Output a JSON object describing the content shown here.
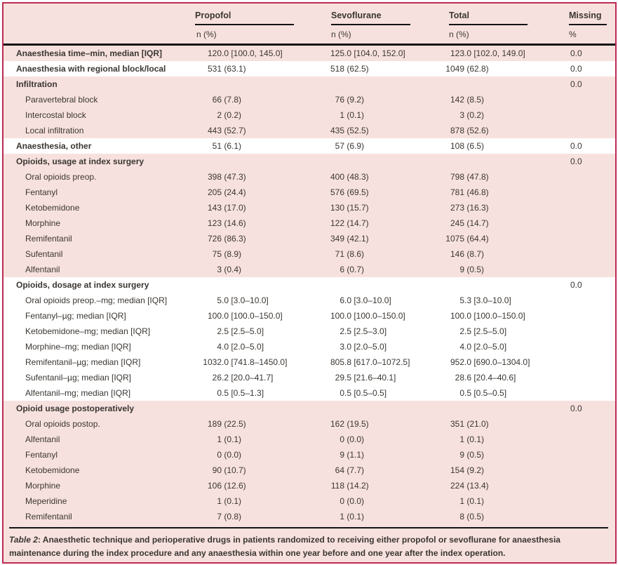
{
  "table": {
    "columns": [
      {
        "label": "Propofol",
        "subheader": "n (%)"
      },
      {
        "label": "Sevoflurane",
        "subheader": "n (%)"
      },
      {
        "label": "Total",
        "subheader": "n (%)"
      },
      {
        "label": "Missing",
        "subheader": "%"
      }
    ],
    "rows": [
      {
        "label": "Anaesthesia time–min, median [IQR]",
        "bold": true,
        "indent": false,
        "bg": "pink",
        "propofol": "120.0 [100.0, 145.0]",
        "sevoflurane": "125.0 [104.0, 152.0]",
        "total": "123.0 [102.0, 149.0]",
        "missing": "0.0"
      },
      {
        "label": "Anaesthesia with regional block/local",
        "bold": true,
        "indent": false,
        "bg": "white",
        "propofol": "531 (63.1)",
        "sevoflurane": "518 (62.5)",
        "total": "1049 (62.8)",
        "missing": "0.0"
      },
      {
        "label": "Infiltration",
        "bold": true,
        "indent": false,
        "bg": "pink",
        "propofol": "",
        "sevoflurane": "",
        "total": "",
        "missing": "0.0"
      },
      {
        "label": "Paravertebral block",
        "bold": false,
        "indent": true,
        "bg": "pink",
        "propofol": "66 (7.8)",
        "sevoflurane": "76 (9.2)",
        "total": "142 (8.5)",
        "missing": ""
      },
      {
        "label": "Intercostal block",
        "bold": false,
        "indent": true,
        "bg": "pink",
        "propofol": "2 (0.2)",
        "sevoflurane": "1 (0.1)",
        "total": "3 (0.2)",
        "missing": ""
      },
      {
        "label": "Local infiltration",
        "bold": false,
        "indent": true,
        "bg": "pink",
        "propofol": "443 (52.7)",
        "sevoflurane": "435 (52.5)",
        "total": "878 (52.6)",
        "missing": ""
      },
      {
        "label": "Anaesthesia, other",
        "bold": true,
        "indent": false,
        "bg": "white",
        "propofol": "51 (6.1)",
        "sevoflurane": "57 (6.9)",
        "total": "108 (6.5)",
        "missing": "0.0"
      },
      {
        "label": "Opioids, usage at index surgery",
        "bold": true,
        "indent": false,
        "bg": "pink",
        "propofol": "",
        "sevoflurane": "",
        "total": "",
        "missing": "0.0"
      },
      {
        "label": "Oral opioids preop.",
        "bold": false,
        "indent": true,
        "bg": "pink",
        "propofol": "398 (47.3)",
        "sevoflurane": "400 (48.3)",
        "total": "798 (47.8)",
        "missing": ""
      },
      {
        "label": "Fentanyl",
        "bold": false,
        "indent": true,
        "bg": "pink",
        "propofol": "205 (24.4)",
        "sevoflurane": "576 (69.5)",
        "total": "781 (46.8)",
        "missing": ""
      },
      {
        "label": "Ketobemidone",
        "bold": false,
        "indent": true,
        "bg": "pink",
        "propofol": "143 (17.0)",
        "sevoflurane": "130 (15.7)",
        "total": "273 (16.3)",
        "missing": ""
      },
      {
        "label": "Morphine",
        "bold": false,
        "indent": true,
        "bg": "pink",
        "propofol": "123 (14.6)",
        "sevoflurane": "122 (14.7)",
        "total": "245 (14.7)",
        "missing": ""
      },
      {
        "label": "Remifentanil",
        "bold": false,
        "indent": true,
        "bg": "pink",
        "propofol": "726 (86.3)",
        "sevoflurane": "349 (42.1)",
        "total": "1075 (64.4)",
        "missing": ""
      },
      {
        "label": "Sufentanil",
        "bold": false,
        "indent": true,
        "bg": "pink",
        "propofol": "75 (8.9)",
        "sevoflurane": "71 (8.6)",
        "total": "146 (8.7)",
        "missing": ""
      },
      {
        "label": "Alfentanil",
        "bold": false,
        "indent": true,
        "bg": "pink",
        "propofol": "3 (0.4)",
        "sevoflurane": "6 (0.7)",
        "total": "9 (0.5)",
        "missing": ""
      },
      {
        "label": "Opioids, dosage at index surgery",
        "bold": true,
        "indent": false,
        "bg": "white",
        "propofol": "",
        "sevoflurane": "",
        "total": "",
        "missing": "0.0"
      },
      {
        "label": "Oral opioids preop.–mg; median [IQR]",
        "bold": false,
        "indent": true,
        "bg": "white",
        "propofol": "5.0 [3.0–10.0]",
        "sevoflurane": "6.0 [3.0–10.0]",
        "total": "5.3 [3.0–10.0]",
        "missing": ""
      },
      {
        "label": "Fentanyl–µg; median [IQR]",
        "bold": false,
        "indent": true,
        "bg": "white",
        "propofol": "100.0 [100.0–150.0]",
        "sevoflurane": "100.0 [100.0–150.0]",
        "total": "100.0 [100.0–150.0]",
        "missing": ""
      },
      {
        "label": "Ketobemidone–mg; median [IQR]",
        "bold": false,
        "indent": true,
        "bg": "white",
        "propofol": "2.5 [2.5–5.0]",
        "sevoflurane": "2.5 [2.5–3.0]",
        "total": "2.5 [2.5–5.0]",
        "missing": ""
      },
      {
        "label": "Morphine–mg; median [IQR]",
        "bold": false,
        "indent": true,
        "bg": "white",
        "propofol": "4.0 [2.0–5.0]",
        "sevoflurane": "3.0 [2.0–5.0]",
        "total": "4.0 [2.0–5.0]",
        "missing": ""
      },
      {
        "label": "Remifentanil–µg; median [IQR]",
        "bold": false,
        "indent": true,
        "bg": "white",
        "propofol": "1032.0 [741.8–1450.0]",
        "sevoflurane": "805.8 [617.0–1072.5]",
        "total": "952.0 [690.0–1304.0]",
        "missing": ""
      },
      {
        "label": "Sufentanil–µg; median [IQR]",
        "bold": false,
        "indent": true,
        "bg": "white",
        "propofol": "26.2 [20.0–41.7]",
        "sevoflurane": "29.5 [21.6–40.1]",
        "total": "28.6 [20.4–40.6]",
        "missing": ""
      },
      {
        "label": "Alfentanil–mg; median [IQR]",
        "bold": false,
        "indent": true,
        "bg": "white",
        "propofol": "0.5 [0.5–1.3]",
        "sevoflurane": "0.5 [0.5–0.5]",
        "total": "0.5 [0.5–0.5]",
        "missing": ""
      },
      {
        "label": "Opioid usage postoperatively",
        "bold": true,
        "indent": false,
        "bg": "pink",
        "propofol": "",
        "sevoflurane": "",
        "total": "",
        "missing": "0.0"
      },
      {
        "label": "Oral opioids postop.",
        "bold": false,
        "indent": true,
        "bg": "pink",
        "propofol": "189 (22.5)",
        "sevoflurane": "162 (19.5)",
        "total": "351 (21.0)",
        "missing": ""
      },
      {
        "label": "Alfentanil",
        "bold": false,
        "indent": true,
        "bg": "pink",
        "propofol": "1 (0.1)",
        "sevoflurane": "0 (0.0)",
        "total": "1 (0.1)",
        "missing": ""
      },
      {
        "label": "Fentanyl",
        "bold": false,
        "indent": true,
        "bg": "pink",
        "propofol": "0 (0.0)",
        "sevoflurane": "9 (1.1)",
        "total": "9 (0.5)",
        "missing": ""
      },
      {
        "label": "Ketobemidone",
        "bold": false,
        "indent": true,
        "bg": "pink",
        "propofol": "90 (10.7)",
        "sevoflurane": "64 (7.7)",
        "total": "154 (9.2)",
        "missing": ""
      },
      {
        "label": "Morphine",
        "bold": false,
        "indent": true,
        "bg": "pink",
        "propofol": "106 (12.6)",
        "sevoflurane": "118 (14.2)",
        "total": "224 (13.4)",
        "missing": ""
      },
      {
        "label": "Meperidine",
        "bold": false,
        "indent": true,
        "bg": "pink",
        "propofol": "1 (0.1)",
        "sevoflurane": "0 (0.0)",
        "total": "1 (0.1)",
        "missing": ""
      },
      {
        "label": "Remifentanil",
        "bold": false,
        "indent": true,
        "bg": "pink",
        "propofol": "7 (0.8)",
        "sevoflurane": "1 (0.1)",
        "total": "8 (0.5)",
        "missing": ""
      }
    ]
  },
  "caption": {
    "label": "Table 2",
    "text": ": Anaesthetic technique and perioperative drugs in patients randomized to receiving either propofol or sevoflurane for anaesthesia maintenance during the index procedure and any anaesthesia within one year before and one year after the index operation."
  },
  "colors": {
    "background_pink": "#f7e1de",
    "row_white": "#ffffff",
    "border_crimson": "#bc2a52",
    "text": "#3a3632",
    "rule_black": "#141414"
  }
}
